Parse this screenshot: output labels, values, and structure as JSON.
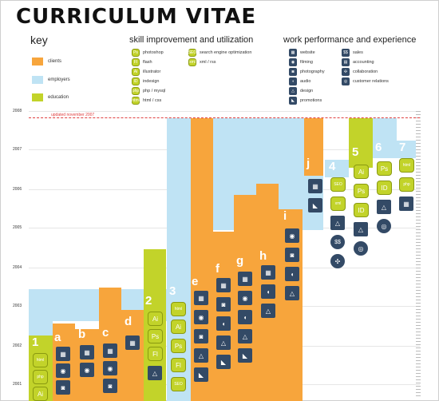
{
  "title": "CURRICULUM VITAE",
  "headings": {
    "key": "key",
    "skill": "skill improvement and utilization",
    "work": "work performance and experience"
  },
  "legend": [
    {
      "label": "clients",
      "color": "#f7a53c"
    },
    {
      "label": "employers",
      "color": "#bfe3f4"
    },
    {
      "label": "education",
      "color": "#c2d32a"
    }
  ],
  "skills": [
    {
      "abbr": "Ps",
      "label": "photoshop",
      "icon": "photoshop-icon"
    },
    {
      "abbr": "Fl",
      "label": "flash",
      "icon": "flash-icon"
    },
    {
      "abbr": "Ai",
      "label": "illustrator",
      "icon": "illustrator-icon"
    },
    {
      "abbr": "ID",
      "label": "indesign",
      "icon": "indesign-icon"
    },
    {
      "abbr": "php",
      "label": "php / mysql",
      "icon": "php-icon"
    },
    {
      "abbr": "html",
      "label": "html / css",
      "icon": "html-icon"
    },
    {
      "abbr": "SEO",
      "label": "search engine optimization",
      "icon": "seo-icon"
    },
    {
      "abbr": "xml",
      "label": "xml / rss",
      "icon": "xml-icon"
    }
  ],
  "work": [
    {
      "label": "website",
      "glyph": "▦",
      "icon": "website-icon"
    },
    {
      "label": "filming",
      "glyph": "◉",
      "icon": "camera-icon"
    },
    {
      "label": "photography",
      "glyph": "◙",
      "icon": "photo-camera-icon"
    },
    {
      "label": "audio",
      "glyph": "◖",
      "icon": "audio-icon"
    },
    {
      "label": "design",
      "glyph": "△",
      "icon": "compass-icon"
    },
    {
      "label": "promotions",
      "glyph": "◣",
      "icon": "megaphone-icon"
    },
    {
      "label": "sales",
      "glyph": "$$",
      "icon": "sales-icon"
    },
    {
      "label": "accounting",
      "glyph": "▤",
      "icon": "accounting-icon"
    },
    {
      "label": "collaboration",
      "glyph": "✣",
      "icon": "collaboration-icon"
    },
    {
      "label": "customer relations",
      "glyph": "◎",
      "icon": "customer-relations-icon"
    }
  ],
  "years": [
    "2008",
    "2007",
    "2006",
    "2005",
    "2004",
    "2003",
    "2002",
    "2001"
  ],
  "updated": "updated november 2007",
  "letters": [
    "1",
    "a",
    "b",
    "c",
    "d",
    "2",
    "3",
    "e",
    "f",
    "g",
    "h",
    "i",
    "j",
    "4",
    "5",
    "6",
    "7"
  ],
  "chip_text": {
    "html": "html",
    "php": "php",
    "ai": "Ai",
    "ps": "Ps",
    "fl": "Fl",
    "id": "ID",
    "seo": "SEO",
    "xml": "xml",
    "dollar": "$$"
  }
}
